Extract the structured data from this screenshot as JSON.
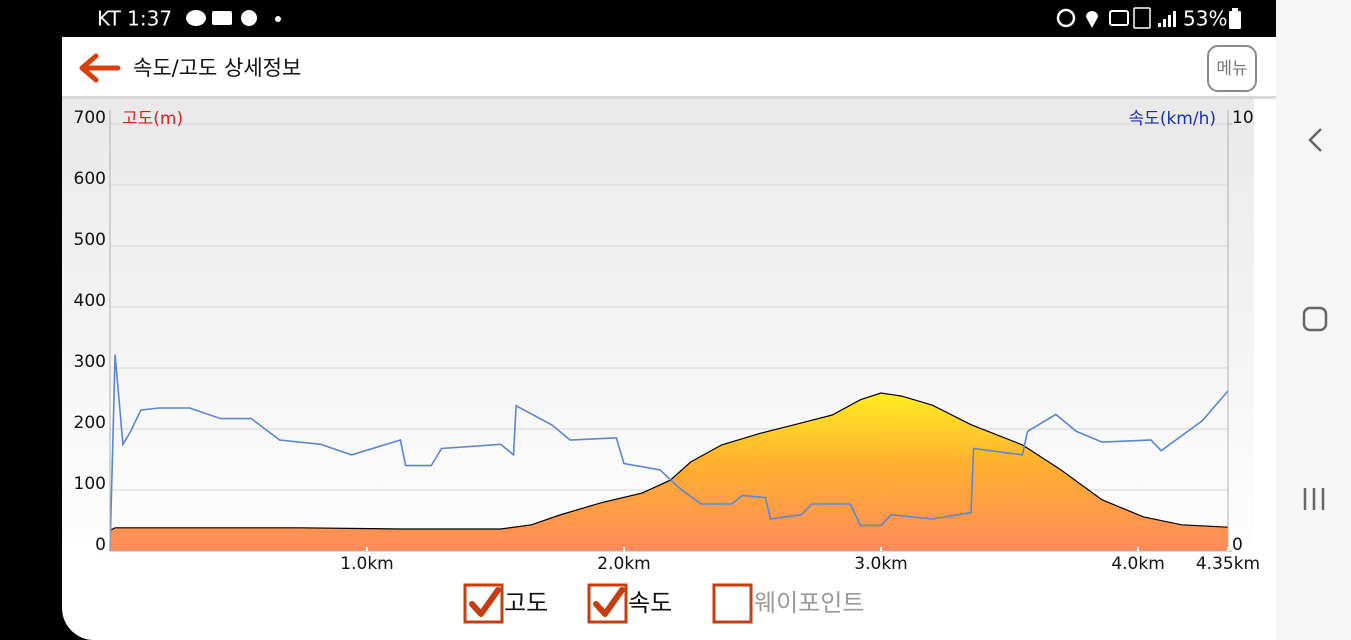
{
  "status_bar": {
    "carrier_time": "KT 1:37",
    "battery": "53%"
  },
  "header": {
    "title": "속도/고도 상세정보",
    "menu": "메뉴"
  },
  "chart_data": {
    "type": "line",
    "y_label": "고도(m)",
    "y2_label": "속도(km/h)",
    "xlim": [
      0,
      4.35
    ],
    "xticks": [
      {
        "value": 1,
        "label": "1.0km"
      },
      {
        "value": 2,
        "label": "2.0km"
      },
      {
        "value": 3,
        "label": "3.0km"
      },
      {
        "value": 4,
        "label": "4.0km"
      },
      {
        "value": 4.35,
        "label": "4.35km"
      }
    ],
    "ylim": [
      0,
      700
    ],
    "yticks": [
      0,
      100,
      200,
      300,
      400,
      500,
      600,
      700
    ],
    "y2lim": [
      0,
      10
    ],
    "y2ticks": [
      0,
      10
    ],
    "grid": true,
    "series": [
      {
        "name": "고도",
        "type": "area",
        "color": "#000000",
        "x": [
          0,
          0.02,
          0.16,
          0.74,
          1.13,
          1.52,
          1.64,
          1.75,
          1.91,
          2.07,
          2.18,
          2.26,
          2.38,
          2.53,
          2.69,
          2.81,
          2.92,
          3.0,
          3.08,
          3.2,
          3.35,
          3.55,
          3.7,
          3.86,
          4.02,
          4.17,
          4.35
        ],
        "values": [
          34,
          38,
          38,
          38,
          36,
          36,
          43,
          59,
          79,
          95,
          116,
          146,
          174,
          193,
          210,
          223,
          248,
          259,
          254,
          239,
          207,
          174,
          133,
          84,
          56,
          43,
          39
        ]
      },
      {
        "name": "속도",
        "color": "#5b87d0",
        "axis": "y2",
        "x": [
          0,
          0.02,
          0.05,
          0.08,
          0.12,
          0.19,
          0.31,
          0.43,
          0.55,
          0.66,
          0.82,
          0.94,
          1.13,
          1.15,
          1.25,
          1.29,
          1.52,
          1.57,
          1.58,
          1.72,
          1.79,
          1.97,
          2.0,
          2.14,
          2.22,
          2.3,
          2.42,
          2.46,
          2.55,
          2.57,
          2.69,
          2.73,
          2.88,
          2.92,
          3.0,
          3.04,
          3.2,
          3.35,
          3.36,
          3.55,
          3.57,
          3.68,
          3.76,
          3.86,
          4.05,
          4.09,
          4.25,
          4.35
        ],
        "values": [
          0,
          4.6,
          2.5,
          2.8,
          3.3,
          3.35,
          3.35,
          3.1,
          3.1,
          2.6,
          2.5,
          2.25,
          2.6,
          2.0,
          2.0,
          2.4,
          2.5,
          2.25,
          3.4,
          2.95,
          2.6,
          2.65,
          2.05,
          1.9,
          1.45,
          1.1,
          1.1,
          1.3,
          1.25,
          0.75,
          0.85,
          1.1,
          1.1,
          0.6,
          0.6,
          0.85,
          0.75,
          0.9,
          2.4,
          2.25,
          2.8,
          3.2,
          2.8,
          2.55,
          2.6,
          2.35,
          3.05,
          3.75
        ]
      }
    ]
  },
  "waypoint_toggle": "웨이포인트"
}
